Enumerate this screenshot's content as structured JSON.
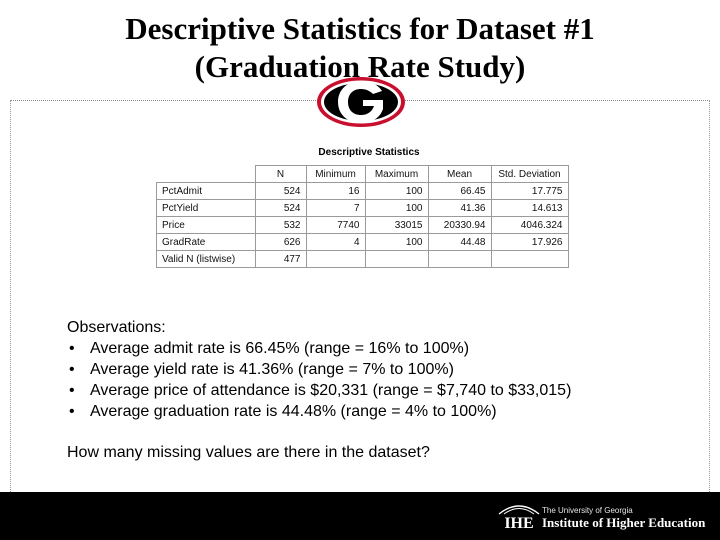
{
  "slide": {
    "title_line1": "Descriptive Statistics for Dataset #1",
    "title_line2": "(Graduation Rate Study)"
  },
  "logo": {
    "icon": "georgia-g-logo-icon",
    "letter": "G",
    "colors": {
      "red": "#c8102e",
      "black": "#000000",
      "white": "#ffffff"
    }
  },
  "table": {
    "caption": "Descriptive Statistics",
    "headers": [
      "",
      "N",
      "Minimum",
      "Maximum",
      "Mean",
      "Std. Deviation"
    ],
    "rows": [
      [
        "PctAdmit",
        "524",
        "16",
        "100",
        "66.45",
        "17.775"
      ],
      [
        "PctYield",
        "524",
        "7",
        "100",
        "41.36",
        "14.613"
      ],
      [
        "Price",
        "532",
        "7740",
        "33015",
        "20330.94",
        "4046.324"
      ],
      [
        "GradRate",
        "626",
        "4",
        "100",
        "44.48",
        "17.926"
      ],
      [
        "Valid N (listwise)",
        "477",
        "",
        "",
        "",
        ""
      ]
    ]
  },
  "observations": {
    "heading": "Observations:",
    "bullet": "•",
    "items": [
      "Average admit rate is 66.45% (range = 16% to 100%)",
      "Average yield rate is 41.36% (range = 7% to 100%)",
      "Average price of attendance is $20,331 (range = $7,740 to $33,015)",
      "Average graduation rate is 44.48% (range = 4% to 100%)"
    ]
  },
  "question": "How many missing values are there in the dataset?",
  "footer": {
    "mark": "IHE",
    "org_line1": "The University of Georgia",
    "org_line2": "Institute of Higher Education",
    "background": "#000000"
  }
}
